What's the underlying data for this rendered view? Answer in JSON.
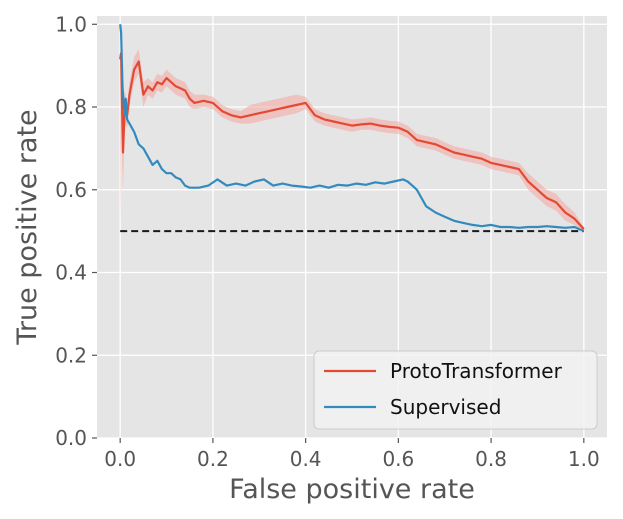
{
  "chart_data": {
    "type": "line",
    "title": "",
    "xlabel": "False positive rate",
    "ylabel": "True positive rate",
    "xlim": [
      -0.05,
      1.05
    ],
    "ylim": [
      0.0,
      1.02
    ],
    "xticks": [
      0.0,
      0.2,
      0.4,
      0.6,
      0.8,
      1.0
    ],
    "xtick_labels": [
      "0.0",
      "0.2",
      "0.4",
      "0.6",
      "0.8",
      "1.0"
    ],
    "yticks": [
      0.0,
      0.2,
      0.4,
      0.6,
      0.8,
      1.0
    ],
    "ytick_labels": [
      "0.0",
      "0.2",
      "0.4",
      "0.6",
      "0.8",
      "1.0"
    ],
    "grid": true,
    "legend_position": "bottom-right",
    "colors": {
      "background": "#e5e5e5",
      "grid": "#ffffff",
      "tick_text": "#555555",
      "label_text": "#555555",
      "baseline": "#1a1a1a",
      "legend_bg": "#f2f2f2",
      "legend_border": "#cccccc"
    },
    "baseline": {
      "x": [
        0.0,
        1.0
      ],
      "y": [
        0.5,
        0.5
      ],
      "style": "dashed"
    },
    "series": [
      {
        "name": "ProtoTransformer",
        "color": "#e24a33",
        "band_color": "#f4a6a0",
        "x": [
          0.0,
          0.002,
          0.006,
          0.01,
          0.015,
          0.02,
          0.03,
          0.04,
          0.05,
          0.06,
          0.07,
          0.08,
          0.09,
          0.1,
          0.11,
          0.12,
          0.13,
          0.14,
          0.15,
          0.16,
          0.18,
          0.2,
          0.22,
          0.24,
          0.26,
          0.28,
          0.3,
          0.32,
          0.34,
          0.36,
          0.38,
          0.4,
          0.42,
          0.44,
          0.46,
          0.48,
          0.5,
          0.52,
          0.54,
          0.56,
          0.58,
          0.6,
          0.62,
          0.64,
          0.66,
          0.68,
          0.7,
          0.72,
          0.74,
          0.76,
          0.78,
          0.8,
          0.82,
          0.84,
          0.86,
          0.88,
          0.9,
          0.92,
          0.94,
          0.96,
          0.98,
          1.0
        ],
        "y": [
          0.915,
          0.93,
          0.69,
          0.8,
          0.78,
          0.83,
          0.89,
          0.91,
          0.83,
          0.85,
          0.84,
          0.86,
          0.855,
          0.87,
          0.86,
          0.85,
          0.845,
          0.84,
          0.82,
          0.81,
          0.815,
          0.81,
          0.79,
          0.78,
          0.775,
          0.78,
          0.785,
          0.79,
          0.795,
          0.8,
          0.805,
          0.81,
          0.78,
          0.77,
          0.765,
          0.76,
          0.755,
          0.758,
          0.76,
          0.755,
          0.752,
          0.75,
          0.74,
          0.72,
          0.715,
          0.71,
          0.7,
          0.69,
          0.685,
          0.68,
          0.675,
          0.665,
          0.66,
          0.655,
          0.65,
          0.62,
          0.6,
          0.58,
          0.57,
          0.545,
          0.53,
          0.505
        ],
        "y_lower": [
          0.5,
          0.75,
          0.6,
          0.76,
          0.75,
          0.8,
          0.86,
          0.88,
          0.8,
          0.83,
          0.82,
          0.84,
          0.835,
          0.85,
          0.84,
          0.83,
          0.825,
          0.82,
          0.8,
          0.795,
          0.8,
          0.795,
          0.775,
          0.765,
          0.76,
          0.76,
          0.765,
          0.77,
          0.775,
          0.78,
          0.785,
          0.795,
          0.765,
          0.755,
          0.75,
          0.745,
          0.74,
          0.745,
          0.745,
          0.74,
          0.737,
          0.735,
          0.725,
          0.705,
          0.7,
          0.695,
          0.685,
          0.675,
          0.67,
          0.665,
          0.66,
          0.65,
          0.645,
          0.64,
          0.635,
          0.6,
          0.58,
          0.56,
          0.55,
          0.525,
          0.515,
          0.5
        ],
        "y_upper": [
          0.93,
          0.95,
          0.78,
          0.84,
          0.81,
          0.86,
          0.92,
          0.94,
          0.86,
          0.87,
          0.86,
          0.88,
          0.875,
          0.89,
          0.88,
          0.87,
          0.865,
          0.86,
          0.84,
          0.83,
          0.83,
          0.825,
          0.805,
          0.795,
          0.79,
          0.805,
          0.81,
          0.815,
          0.82,
          0.825,
          0.83,
          0.825,
          0.795,
          0.785,
          0.78,
          0.775,
          0.77,
          0.772,
          0.775,
          0.77,
          0.767,
          0.765,
          0.755,
          0.735,
          0.73,
          0.725,
          0.715,
          0.705,
          0.7,
          0.695,
          0.69,
          0.68,
          0.675,
          0.67,
          0.665,
          0.64,
          0.62,
          0.6,
          0.59,
          0.565,
          0.545,
          0.51
        ]
      },
      {
        "name": "Supervised",
        "color": "#348abd",
        "x": [
          0.0,
          0.002,
          0.005,
          0.008,
          0.01,
          0.012,
          0.015,
          0.02,
          0.03,
          0.04,
          0.05,
          0.06,
          0.07,
          0.08,
          0.09,
          0.1,
          0.11,
          0.12,
          0.13,
          0.14,
          0.15,
          0.17,
          0.19,
          0.21,
          0.23,
          0.25,
          0.27,
          0.29,
          0.31,
          0.33,
          0.35,
          0.37,
          0.39,
          0.41,
          0.43,
          0.45,
          0.47,
          0.49,
          0.51,
          0.53,
          0.55,
          0.57,
          0.59,
          0.61,
          0.62,
          0.63,
          0.64,
          0.65,
          0.66,
          0.68,
          0.7,
          0.72,
          0.74,
          0.76,
          0.78,
          0.8,
          0.82,
          0.84,
          0.86,
          0.88,
          0.9,
          0.92,
          0.94,
          0.96,
          0.98,
          1.0
        ],
        "y": [
          1.0,
          0.98,
          0.85,
          0.8,
          0.78,
          0.82,
          0.77,
          0.76,
          0.74,
          0.71,
          0.7,
          0.68,
          0.66,
          0.67,
          0.65,
          0.64,
          0.64,
          0.63,
          0.625,
          0.61,
          0.605,
          0.605,
          0.61,
          0.625,
          0.61,
          0.615,
          0.61,
          0.62,
          0.625,
          0.61,
          0.615,
          0.61,
          0.608,
          0.605,
          0.61,
          0.605,
          0.612,
          0.61,
          0.615,
          0.612,
          0.618,
          0.615,
          0.62,
          0.625,
          0.62,
          0.61,
          0.6,
          0.58,
          0.56,
          0.545,
          0.535,
          0.525,
          0.52,
          0.515,
          0.512,
          0.515,
          0.51,
          0.51,
          0.508,
          0.51,
          0.51,
          0.512,
          0.51,
          0.508,
          0.51,
          0.5
        ]
      }
    ]
  }
}
